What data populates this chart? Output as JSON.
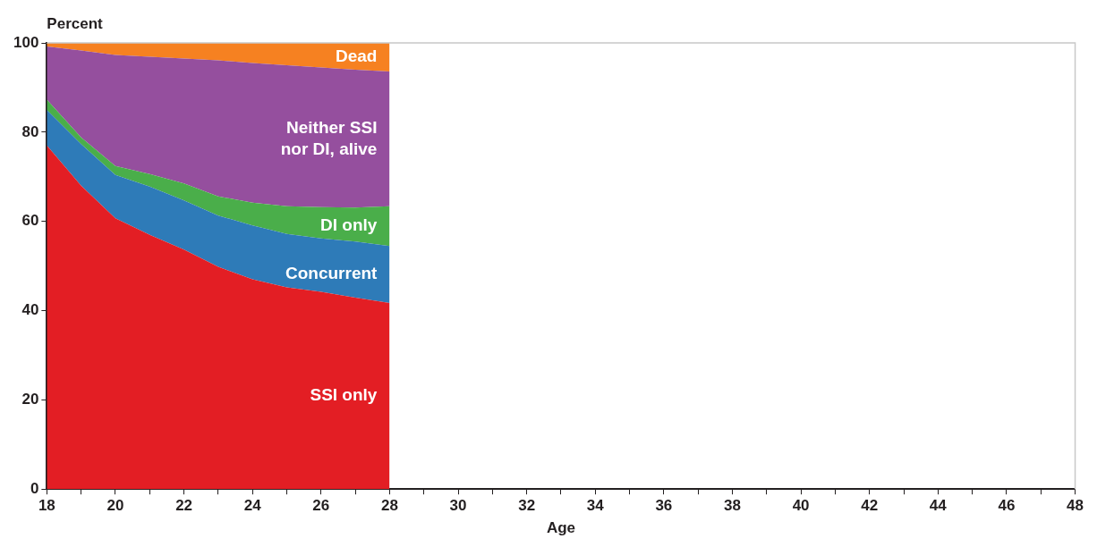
{
  "chart_data": {
    "type": "area",
    "stacked": true,
    "xlabel": "Age",
    "ylabel": "Percent",
    "x": [
      18,
      19,
      20,
      21,
      22,
      23,
      24,
      25,
      26,
      27,
      28
    ],
    "series": [
      {
        "name": "SSI only",
        "color": "#e31e24",
        "values": [
          77,
          68,
          60.7,
          57,
          53.7,
          49.8,
          47,
          45.2,
          44.2,
          42.9,
          41.7
        ]
      },
      {
        "name": "Concurrent",
        "color": "#2e7bb8",
        "values": [
          8,
          9.3,
          9.7,
          10.8,
          11,
          11.5,
          12.1,
          12,
          12,
          12.6,
          12.8
        ]
      },
      {
        "name": "DI only",
        "color": "#4aae4a",
        "values": [
          2.3,
          1.5,
          2,
          2.8,
          3.8,
          4.3,
          5.1,
          6.2,
          7,
          7.6,
          8.9
        ]
      },
      {
        "name": "Neither SSI nor DI, alive",
        "color": "#954f9e",
        "values": [
          11.9,
          19.5,
          24.9,
          26.3,
          28,
          30.5,
          31.3,
          31.6,
          31.3,
          30.9,
          30.2
        ]
      },
      {
        "name": "Dead",
        "color": "#f68121",
        "values": [
          0.8,
          1.7,
          2.7,
          3.1,
          3.5,
          3.9,
          4.5,
          5,
          5.5,
          6,
          6.4
        ]
      }
    ],
    "xlim": [
      18,
      48
    ],
    "xticks": [
      18,
      {
        "value": 19,
        "label": null
      },
      20,
      {
        "value": 21,
        "label": null
      },
      22,
      {
        "value": 23,
        "label": null
      },
      24,
      {
        "value": 25,
        "label": null
      },
      26,
      {
        "value": 27,
        "label": null
      },
      28,
      {
        "value": 29,
        "label": null
      },
      30,
      {
        "value": 31,
        "label": null
      },
      32,
      {
        "value": 33,
        "label": null
      },
      34,
      {
        "value": 35,
        "label": null
      },
      36,
      {
        "value": 37,
        "label": null
      },
      38,
      {
        "value": 39,
        "label": null
      },
      40,
      {
        "value": 41,
        "label": null
      },
      42,
      {
        "value": 43,
        "label": null
      },
      44,
      {
        "value": 45,
        "label": null
      },
      46,
      {
        "value": 47,
        "label": null
      },
      48
    ],
    "ylim": [
      0,
      100
    ],
    "yticks": [
      0,
      20,
      40,
      60,
      80,
      100
    ],
    "grid": false,
    "legend": false
  }
}
